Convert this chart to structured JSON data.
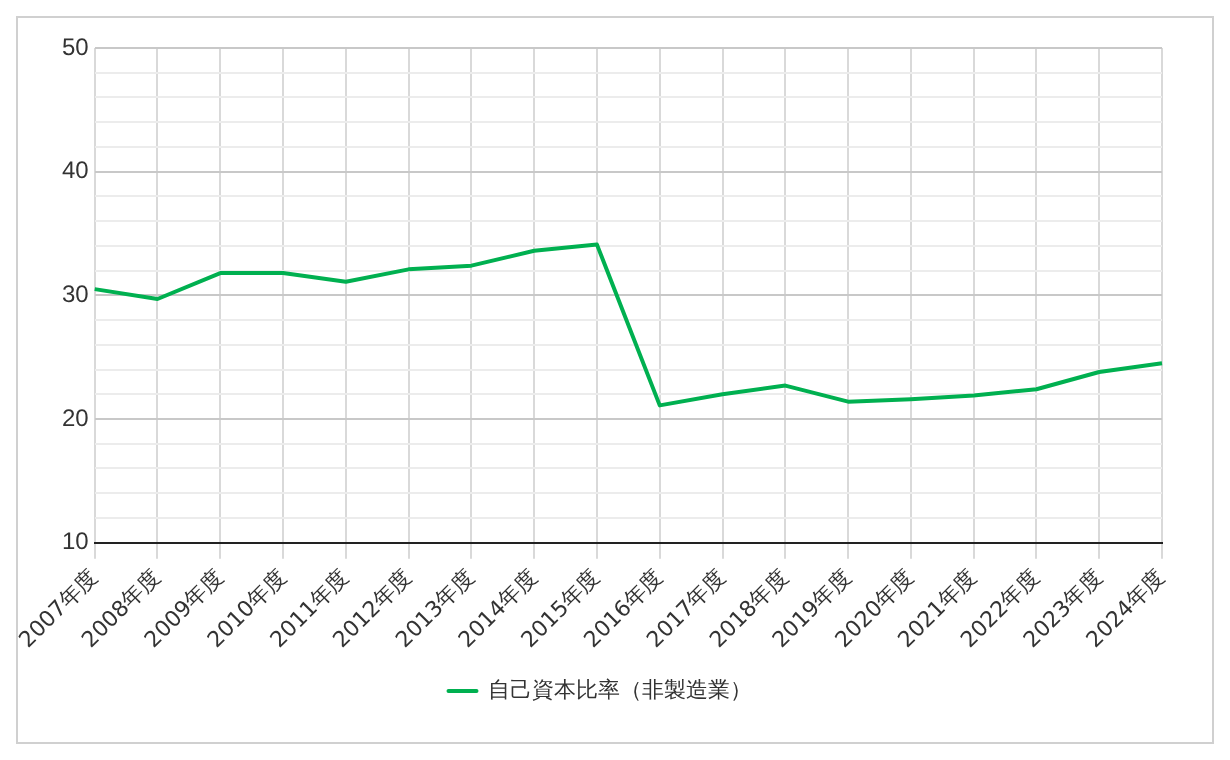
{
  "chart_data": {
    "type": "line",
    "categories": [
      "2007年度",
      "2008年度",
      "2009年度",
      "2010年度",
      "2011年度",
      "2012年度",
      "2013年度",
      "2014年度",
      "2015年度",
      "2016年度",
      "2017年度",
      "2018年度",
      "2019年度",
      "2020年度",
      "2021年度",
      "2022年度",
      "2023年度",
      "2024年度"
    ],
    "series": [
      {
        "name": "自己資本比率（非製造業）",
        "color": "#00b050",
        "values": [
          30.5,
          29.7,
          31.8,
          31.8,
          31.1,
          32.1,
          32.4,
          33.6,
          34.1,
          21.1,
          22.0,
          22.7,
          21.4,
          21.6,
          21.9,
          22.4,
          23.8,
          24.5
        ]
      }
    ],
    "ylim": [
      10,
      50
    ],
    "yticks": [
      10,
      {
        "value": 12,
        "label": null
      },
      {
        "value": 14,
        "label": null
      },
      {
        "value": 16,
        "label": null
      },
      {
        "value": 18,
        "label": null
      },
      20,
      {
        "value": 22,
        "label": null
      },
      {
        "value": 24,
        "label": null
      },
      {
        "value": 26,
        "label": null
      },
      {
        "value": 28,
        "label": null
      },
      30,
      {
        "value": 32,
        "label": null
      },
      {
        "value": 34,
        "label": null
      },
      {
        "value": 36,
        "label": null
      },
      {
        "value": 38,
        "label": null
      },
      40,
      {
        "value": 42,
        "label": null
      },
      {
        "value": 44,
        "label": null
      },
      {
        "value": 46,
        "label": null
      },
      {
        "value": 48,
        "label": null
      },
      50
    ],
    "grid": true,
    "legend": "bottom",
    "marker": "none",
    "line_style": "solid"
  }
}
